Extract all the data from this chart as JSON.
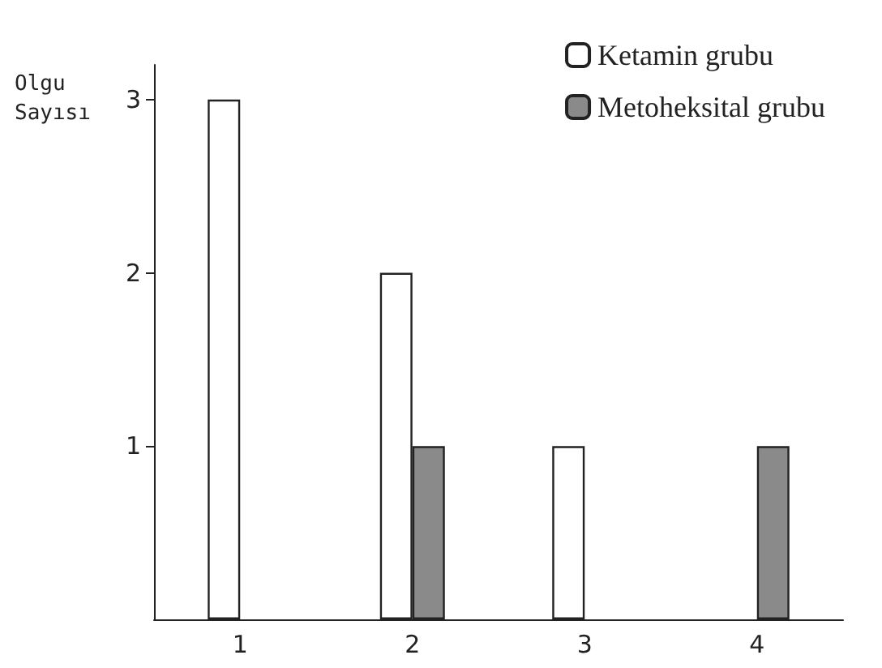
{
  "chart_data": {
    "type": "bar",
    "ylabel": "Olgu Sayısı",
    "categories": [
      "1",
      "2",
      "3",
      "4"
    ],
    "series": [
      {
        "name": "Ketamin grubu",
        "color": "#ffffff",
        "values": [
          3,
          2,
          1,
          0
        ]
      },
      {
        "name": "Metoheksital grubu",
        "color": "#8a8a8a",
        "values": [
          0,
          1,
          0,
          1
        ]
      }
    ],
    "ylim": [
      0,
      3.2
    ],
    "yticks": [
      1,
      2,
      3
    ],
    "grid": false,
    "legend": "top right"
  }
}
